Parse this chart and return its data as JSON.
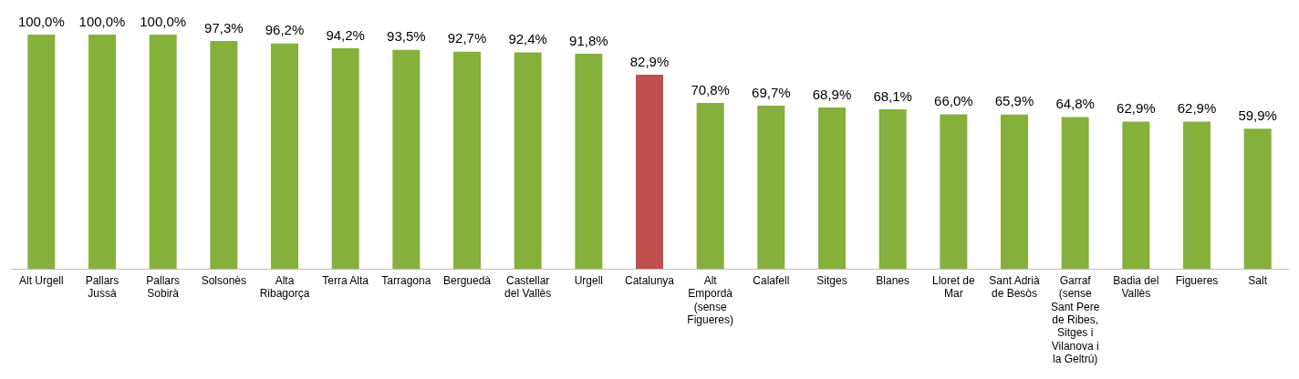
{
  "chart_data": {
    "type": "bar",
    "categories": [
      "Alt Urgell",
      "Pallars Jussà",
      "Pallars Sobirà",
      "Solsonès",
      "Alta Ribagorça",
      "Terra Alta",
      "Tarragona",
      "Berguedà",
      "Castellar del Vallès",
      "Urgell",
      "Catalunya",
      "Alt Empordà (sense Figueres)",
      "Calafell",
      "Sitges",
      "Blanes",
      "Lloret de Mar",
      "Sant Adrià de Besòs",
      "Garraf (sense Sant Pere de Ribes, Sitges i Vilanova i la Geltrú)",
      "Badia del Vallès",
      "Figueres",
      "Salt"
    ],
    "values": [
      100.0,
      100.0,
      100.0,
      97.3,
      96.2,
      94.2,
      93.5,
      92.7,
      92.4,
      91.8,
      82.9,
      70.8,
      69.7,
      68.9,
      68.1,
      66.0,
      65.9,
      64.8,
      62.9,
      62.9,
      59.9
    ],
    "value_labels": [
      "100,0%",
      "100,0%",
      "100,0%",
      "97,3%",
      "96,2%",
      "94,2%",
      "93,5%",
      "92,7%",
      "92,4%",
      "91,8%",
      "82,9%",
      "70,8%",
      "69,7%",
      "68,9%",
      "68,1%",
      "66,0%",
      "65,9%",
      "64,8%",
      "62,9%",
      "62,9%",
      "59,9%"
    ],
    "colors": [
      "#86b03c",
      "#86b03c",
      "#86b03c",
      "#86b03c",
      "#86b03c",
      "#86b03c",
      "#86b03c",
      "#86b03c",
      "#86b03c",
      "#86b03c",
      "#c0504d",
      "#86b03c",
      "#86b03c",
      "#86b03c",
      "#86b03c",
      "#86b03c",
      "#86b03c",
      "#86b03c",
      "#86b03c",
      "#86b03c",
      "#86b03c"
    ],
    "grid": false,
    "legend": false
  }
}
